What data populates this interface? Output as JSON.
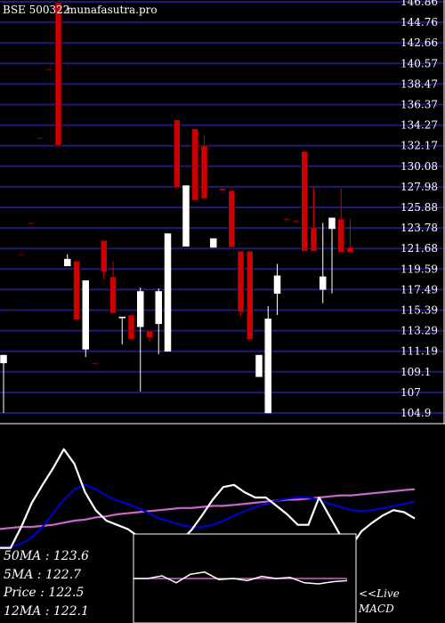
{
  "header": {
    "symbol": "BSE 500322",
    "site": "munafasutra.pro"
  },
  "chart_data": [
    {
      "type": "candlestick",
      "title": "",
      "ylim": [
        104.9,
        146.86
      ],
      "y_ticks": [
        146.86,
        144.76,
        142.66,
        140.57,
        138.47,
        136.37,
        134.27,
        132.17,
        130.08,
        127.98,
        125.88,
        123.78,
        121.68,
        119.59,
        117.49,
        115.39,
        113.29,
        111.19,
        109.1,
        107,
        104.9
      ],
      "y_tick_labels": [
        "146.86",
        "144.76",
        "142.66",
        "140.57",
        "138.47",
        "136.37",
        "134.27",
        "132.17",
        "130.08",
        "127.98",
        "125.88",
        "123.78",
        "121.68",
        "119.59",
        "117.49",
        "115.39",
        "113.29",
        "111.19",
        "109.1",
        "107",
        "104.9"
      ],
      "grid": true,
      "colors": {
        "up": "#ffffff",
        "down": "#cc0000",
        "grid": "#1c1c7c",
        "border": "#ffffff"
      },
      "candles": [
        {
          "o": 110.0,
          "h": 110.8,
          "l": 104.9,
          "c": 110.8
        },
        {
          "o": 115.5,
          "h": 115.5,
          "l": 115.5,
          "c": 115.4
        },
        {
          "o": 121.1,
          "h": 121.1,
          "l": 121.1,
          "c": 121.0
        },
        {
          "o": 124.3,
          "h": 124.3,
          "l": 124.3,
          "c": 124.2
        },
        {
          "o": 133.0,
          "h": 133.0,
          "l": 133.0,
          "c": 132.9
        },
        {
          "o": 140.0,
          "h": 140.0,
          "l": 140.0,
          "c": 139.9
        },
        {
          "o": 146.8,
          "h": 146.86,
          "l": 132.2,
          "c": 132.2
        },
        {
          "o": 119.9,
          "h": 121.1,
          "l": 119.9,
          "c": 120.6
        },
        {
          "o": 120.4,
          "h": 120.4,
          "l": 114.4,
          "c": 114.4
        },
        {
          "o": 111.4,
          "h": 118.4,
          "l": 110.6,
          "c": 118.4
        },
        {
          "o": 110.0,
          "h": 110.0,
          "l": 110.0,
          "c": 109.9
        },
        {
          "o": 122.5,
          "h": 122.5,
          "l": 118.5,
          "c": 119.3
        },
        {
          "o": 118.8,
          "h": 120.4,
          "l": 115.1,
          "c": 115.1
        },
        {
          "o": 114.7,
          "h": 114.7,
          "l": 111.9,
          "c": 114.7
        },
        {
          "o": 114.9,
          "h": 114.9,
          "l": 112.4,
          "c": 112.4
        },
        {
          "o": 113.7,
          "h": 117.7,
          "l": 107.1,
          "c": 117.3
        },
        {
          "o": 113.3,
          "h": 113.3,
          "l": 112.1,
          "c": 112.6
        },
        {
          "o": 114.0,
          "h": 117.6,
          "l": 110.9,
          "c": 117.3
        },
        {
          "o": 111.2,
          "h": 123.2,
          "l": 111.2,
          "c": 123.2
        },
        {
          "o": 134.8,
          "h": 134.8,
          "l": 127.9,
          "c": 127.9
        },
        {
          "o": 121.9,
          "h": 128.1,
          "l": 121.9,
          "c": 128.1
        },
        {
          "o": 133.9,
          "h": 133.9,
          "l": 126.6,
          "c": 126.6
        },
        {
          "o": 132.2,
          "h": 133.2,
          "l": 126.8,
          "c": 126.8
        },
        {
          "o": 121.8,
          "h": 122.7,
          "l": 121.8,
          "c": 122.7
        },
        {
          "o": 127.8,
          "h": 127.8,
          "l": 127.5,
          "c": 127.6
        },
        {
          "o": 127.6,
          "h": 127.6,
          "l": 121.8,
          "c": 121.8
        },
        {
          "o": 121.4,
          "h": 121.4,
          "l": 114.8,
          "c": 115.2
        },
        {
          "o": 121.4,
          "h": 121.4,
          "l": 112.3,
          "c": 112.4
        },
        {
          "o": 108.6,
          "h": 110.8,
          "l": 108.6,
          "c": 110.8
        },
        {
          "o": 104.9,
          "h": 115.8,
          "l": 104.9,
          "c": 114.5
        },
        {
          "o": 117.1,
          "h": 120.1,
          "l": 114.9,
          "c": 118.9
        },
        {
          "o": 124.7,
          "h": 124.7,
          "l": 124.6,
          "c": 124.6
        },
        {
          "o": 124.5,
          "h": 124.5,
          "l": 124.4,
          "c": 124.4
        },
        {
          "o": 131.6,
          "h": 131.6,
          "l": 121.4,
          "c": 121.4
        },
        {
          "o": 123.8,
          "h": 127.9,
          "l": 121.4,
          "c": 121.4
        },
        {
          "o": 117.5,
          "h": 124.3,
          "l": 116.1,
          "c": 118.8
        },
        {
          "o": 123.7,
          "h": 124.8,
          "l": 117.1,
          "c": 124.8
        },
        {
          "o": 124.7,
          "h": 127.8,
          "l": 121.3,
          "c": 121.3
        },
        {
          "o": 121.8,
          "h": 124.7,
          "l": 121.3,
          "c": 121.3
        }
      ]
    },
    {
      "type": "line",
      "title": "",
      "series": [
        {
          "name": "",
          "color": "#cc66cc",
          "values": [
            0.2,
            0.21,
            0.22,
            0.22,
            0.23,
            0.24,
            0.26,
            0.28,
            0.29,
            0.31,
            0.32,
            0.34,
            0.35,
            0.36,
            0.37,
            0.38,
            0.39,
            0.4,
            0.4,
            0.41,
            0.42,
            0.42,
            0.43,
            0.44,
            0.45,
            0.46,
            0.47,
            0.48,
            0.48,
            0.49,
            0.5,
            0.51,
            0.52,
            0.52,
            0.53,
            0.54,
            0.55,
            0.56,
            0.57,
            0.58
          ]
        },
        {
          "name": "",
          "color": "#0000cc",
          "values": [
            0.02,
            0.03,
            0.06,
            0.12,
            0.22,
            0.35,
            0.48,
            0.58,
            0.62,
            0.58,
            0.52,
            0.47,
            0.44,
            0.4,
            0.35,
            0.3,
            0.27,
            0.24,
            0.22,
            0.22,
            0.24,
            0.28,
            0.33,
            0.37,
            0.41,
            0.44,
            0.47,
            0.49,
            0.5,
            0.5,
            0.48,
            0.44,
            0.41,
            0.38,
            0.37,
            0.38,
            0.4,
            0.42,
            0.44,
            0.46
          ]
        },
        {
          "name": "",
          "color": "#ffffff",
          "values": [
            0.02,
            0.02,
            0.22,
            0.45,
            0.62,
            0.78,
            0.96,
            0.82,
            0.55,
            0.38,
            0.28,
            0.24,
            0.2,
            0.13,
            0.08,
            0.04,
            0.05,
            0.09,
            0.19,
            0.33,
            0.48,
            0.6,
            0.62,
            0.55,
            0.5,
            0.5,
            0.42,
            0.34,
            0.24,
            0.24,
            0.5,
            0.32,
            0.14,
            0.03,
            0.18,
            0.26,
            0.33,
            0.38,
            0.36,
            0.3
          ]
        }
      ]
    },
    {
      "type": "line",
      "title": "MACD",
      "series": [
        {
          "name": "",
          "color": "#cc66cc",
          "values": [
            0.5,
            0.5,
            0.5,
            0.5,
            0.5,
            0.5,
            0.5,
            0.5,
            0.5,
            0.5,
            0.5,
            0.5,
            0.5,
            0.5,
            0.5,
            0.5
          ]
        },
        {
          "name": "",
          "color": "#ffffff",
          "values": [
            0.5,
            0.5,
            0.55,
            0.42,
            0.58,
            0.62,
            0.48,
            0.5,
            0.46,
            0.54,
            0.5,
            0.52,
            0.42,
            0.4,
            0.44,
            0.46
          ]
        }
      ]
    }
  ],
  "legend": [
    "50MA : 123.6",
    "5MA : 122.7",
    "Price   : 122.5",
    "12MA : 122.1"
  ],
  "macd_label": "MACD",
  "live_label": "<<Live"
}
